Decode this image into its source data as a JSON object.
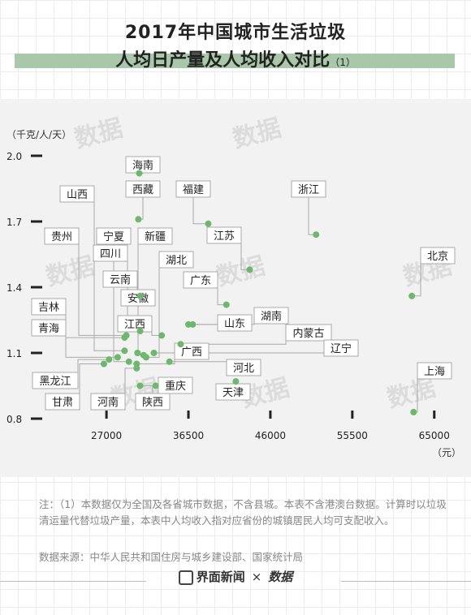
{
  "title_line1": "2017年中国城市生活垃圾",
  "title_line2": "人均日产量及人均收入对比",
  "title_suffix": "（1）",
  "watermark": "数据",
  "chart_data": {
    "type": "scatter",
    "ylabel": "（千克/人/天）",
    "xlabel": "（元）",
    "xlim": [
      22000,
      67000
    ],
    "ylim": [
      0.8,
      2.0
    ],
    "xticks": [
      27000,
      36500,
      46000,
      55500,
      65000
    ],
    "yticks": [
      0.8,
      1.1,
      1.4,
      1.7,
      2.0
    ],
    "ytick_labels": [
      "0.8",
      "1.1",
      "1.4",
      "1.7",
      "2.0"
    ],
    "points": [
      {
        "name": "海南",
        "x": 30800,
        "y": 1.92
      },
      {
        "name": "西藏",
        "x": 30700,
        "y": 1.71
      },
      {
        "name": "福建",
        "x": 38800,
        "y": 1.69
      },
      {
        "name": "浙江",
        "x": 51300,
        "y": 1.64
      },
      {
        "name": "山西",
        "x": 29100,
        "y": 1.11
      },
      {
        "name": "贵州",
        "x": 29300,
        "y": 1.18
      },
      {
        "name": "宁夏",
        "x": 29600,
        "y": 1.06
      },
      {
        "name": "新疆",
        "x": 30600,
        "y": 1.1
      },
      {
        "name": "四川",
        "x": 30900,
        "y": 1.2
      },
      {
        "name": "江苏",
        "x": 43600,
        "y": 1.48
      },
      {
        "name": "北京",
        "x": 62400,
        "y": 1.36
      },
      {
        "name": "湖北",
        "x": 31600,
        "y": 1.08
      },
      {
        "name": "云南",
        "x": 30900,
        "y": 1.36
      },
      {
        "name": "广东",
        "x": 40900,
        "y": 1.32
      },
      {
        "name": "安徽",
        "x": 31300,
        "y": 1.09
      },
      {
        "name": "吉林",
        "x": 28300,
        "y": 1.08
      },
      {
        "name": "湖南",
        "x": 36500,
        "y": 1.23
      },
      {
        "name": "青海",
        "x": 29100,
        "y": 1.17
      },
      {
        "name": "江西",
        "x": 33400,
        "y": 1.18
      },
      {
        "name": "山东",
        "x": 37000,
        "y": 1.23
      },
      {
        "name": "内蒙古",
        "x": 35600,
        "y": 1.14
      },
      {
        "name": "辽宁",
        "x": 32500,
        "y": 1.1
      },
      {
        "name": "广西",
        "x": 30500,
        "y": 1.05
      },
      {
        "name": "河北",
        "x": 34300,
        "y": 1.06
      },
      {
        "name": "黑龙江",
        "x": 27300,
        "y": 1.07
      },
      {
        "name": "重庆",
        "x": 32700,
        "y": 0.95
      },
      {
        "name": "天津",
        "x": 42000,
        "y": 0.97
      },
      {
        "name": "上海",
        "x": 62600,
        "y": 0.83
      },
      {
        "name": "甘肃",
        "x": 26700,
        "y": 1.05
      },
      {
        "name": "河南",
        "x": 30500,
        "y": 1.03
      },
      {
        "name": "陕西",
        "x": 30900,
        "y": 0.95
      }
    ],
    "point_color": "#6db86d"
  },
  "note": "注：（1）本数据仅为全国及各省城市数据，不含县城。本表不含港澳台数据。计算时以垃圾清运量代替垃圾产量，本表中人均收入指对应省份的城镇居民人均可支配收入。",
  "source": "数据来源：中华人民共和国住房与城乡建设部、国家统计局",
  "footer": {
    "brand1": "界面新闻",
    "sep": "×",
    "brand2": "数据"
  }
}
